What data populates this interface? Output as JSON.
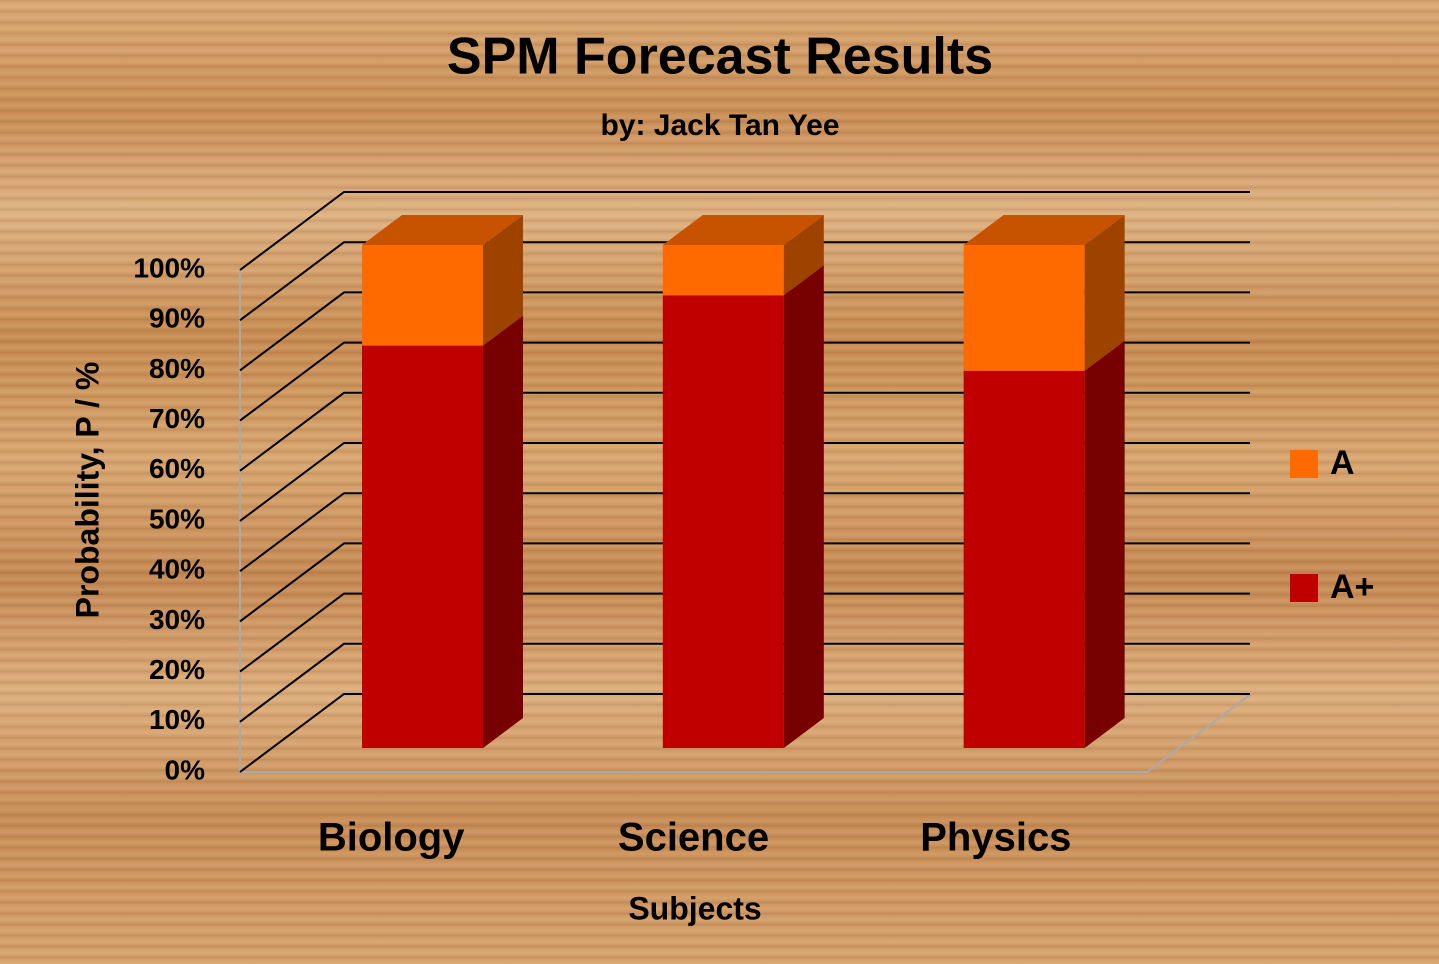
{
  "chart_data": {
    "type": "bar3d_stacked",
    "title": "SPM Forecast Results",
    "subtitle": "by: Jack Tan Yee",
    "x_label": "Subjects",
    "y_label": "Probability, P / %",
    "categories": [
      "Biology",
      "Science",
      "Physics"
    ],
    "series": [
      {
        "name": "A+",
        "color": "#c00000",
        "values": [
          80,
          90,
          75
        ]
      },
      {
        "name": "A",
        "color": "#ff6a00",
        "values": [
          20,
          10,
          25
        ]
      }
    ],
    "ylim": [
      0,
      100
    ],
    "yticks": [
      {
        "value": 0,
        "label": "0%"
      },
      {
        "value": 10,
        "label": "10%"
      },
      {
        "value": 20,
        "label": "20%"
      },
      {
        "value": 30,
        "label": "30%"
      },
      {
        "value": 40,
        "label": "40%"
      },
      {
        "value": 50,
        "label": "50%"
      },
      {
        "value": 60,
        "label": "60%"
      },
      {
        "value": 70,
        "label": "70%"
      },
      {
        "value": 80,
        "label": "80%"
      },
      {
        "value": 90,
        "label": "90%"
      },
      {
        "value": 100,
        "label": "100%"
      }
    ],
    "grid": true,
    "legend": "right"
  }
}
